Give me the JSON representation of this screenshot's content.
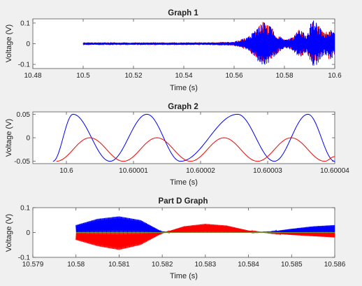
{
  "chart_data": [
    {
      "type": "line",
      "title": "Graph 1",
      "xlabel": "Time (s)",
      "ylabel": "Voltage (V)",
      "xlim": [
        10.48,
        10.6
      ],
      "ylim": [
        -0.12,
        0.12
      ],
      "xticks": [
        "10.48",
        "10.5",
        "10.52",
        "10.54",
        "10.56",
        "10.58",
        "10.6"
      ],
      "yticks": [
        "-0.1",
        "0",
        "0.1"
      ],
      "xtick_values": [
        10.48,
        10.5,
        10.52,
        10.54,
        10.56,
        10.58,
        10.6
      ],
      "ytick_values": [
        -0.1,
        0,
        0.1
      ],
      "colors": [
        "#0000ff",
        "#ff0000"
      ],
      "envelope": {
        "x": [
          10.5,
          10.55,
          10.56,
          10.565,
          10.568,
          10.571,
          10.574,
          10.577,
          10.58,
          10.583,
          10.586,
          10.589,
          10.591,
          10.593,
          10.596,
          10.598,
          10.6
        ],
        "amplitude": [
          0.006,
          0.006,
          0.01,
          0.03,
          0.06,
          0.11,
          0.09,
          0.05,
          0.02,
          0.03,
          0.07,
          0.04,
          0.12,
          0.1,
          0.05,
          0.08,
          0.06
        ]
      },
      "series": [
        {
          "values": []
        },
        {
          "values": []
        }
      ]
    },
    {
      "type": "line",
      "title": "Graph 2",
      "xlabel": "Time (s)",
      "ylabel": "Voltage (V)",
      "xlim": [
        10.599995,
        10.60004
      ],
      "ylim": [
        -0.055,
        0.055
      ],
      "xticks": [
        "10.6",
        "10.60001",
        "10.60002",
        "10.60003",
        "10.60004"
      ],
      "yticks": [
        "-0.05",
        "0",
        "0.05"
      ],
      "xtick_values": [
        10.6,
        10.60001,
        10.60002,
        10.60003,
        10.60004
      ],
      "ytick_values": [
        -0.05,
        0,
        0.05
      ],
      "colors": [
        "#0000ff",
        "#ff0000"
      ],
      "series": [
        {
          "x": [
            10.599998,
            10.600001,
            10.6000065,
            10.600012,
            10.600017,
            10.6000255,
            10.600031,
            10.600036,
            10.60004
          ],
          "values": [
            -0.05,
            0.05,
            -0.05,
            0.05,
            -0.05,
            0.05,
            -0.05,
            0.05,
            -0.05
          ]
        },
        {
          "x": [
            10.5999985,
            10.6000035,
            10.6000085,
            10.6000135,
            10.6000185,
            10.6000235,
            10.6000285,
            10.6000335,
            10.6000385,
            10.60004
          ],
          "values": [
            -0.05,
            0,
            -0.05,
            0,
            -0.05,
            0,
            -0.05,
            0,
            -0.05,
            -0.04
          ]
        }
      ]
    },
    {
      "type": "line",
      "title": "Part D Graph",
      "xlabel": "Time (s)",
      "ylabel": "Voltage (V)",
      "xlim": [
        10.579,
        10.586
      ],
      "ylim": [
        -0.1,
        0.1
      ],
      "xticks": [
        "10.579",
        "10.58",
        "10.581",
        "10.582",
        "10.583",
        "10.584",
        "10.585",
        "10.586"
      ],
      "yticks": [
        "-0.1",
        "0",
        "0.1"
      ],
      "xtick_values": [
        10.579,
        10.58,
        10.581,
        10.582,
        10.583,
        10.584,
        10.585,
        10.586
      ],
      "ytick_values": [
        -0.1,
        0,
        0.1
      ],
      "colors": [
        "#0000ff",
        "#ff0000"
      ],
      "series": [
        {
          "x": [
            10.58,
            10.5805,
            10.581,
            10.5815,
            10.582,
            10.5825,
            10.583,
            10.5835,
            10.584,
            10.5845,
            10.585,
            10.5855,
            10.586
          ],
          "values": [
            0.03,
            0.055,
            0.065,
            0.05,
            0.003,
            0.0,
            0.0,
            0.0,
            0.0,
            0.003,
            0.015,
            0.025,
            0.03
          ]
        },
        {
          "x": [
            10.58,
            10.5805,
            10.581,
            10.5815,
            10.582,
            10.5825,
            10.583,
            10.5835,
            10.584,
            10.5845,
            10.585,
            10.5855,
            10.586
          ],
          "values": [
            -0.03,
            -0.055,
            -0.07,
            -0.05,
            -0.003,
            0.025,
            0.035,
            0.028,
            0.008,
            -0.003,
            -0.01,
            -0.015,
            -0.02
          ]
        }
      ]
    }
  ]
}
